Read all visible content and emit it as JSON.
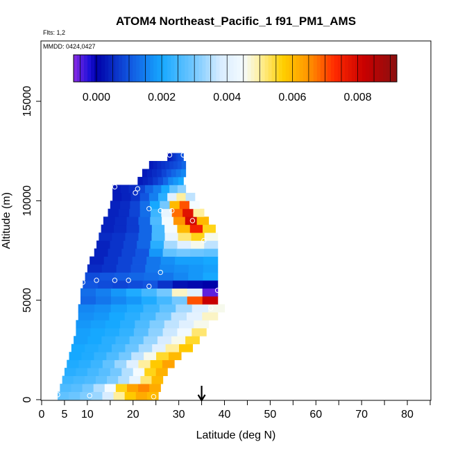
{
  "header": {
    "title": "ATOM4 Northeast_Pacific_1 f91_PM1_AMS",
    "flights": "Flts: 1,2",
    "dates": "MMDD: 0424,0427"
  },
  "chart_data": {
    "type": "heatmap",
    "title": "ATOM4 Northeast_Pacific_1 f91_PM1_AMS",
    "xlabel": "Latitude (deg N)",
    "ylabel": "Altitude (m)",
    "xlim": [
      0,
      85
    ],
    "ylim": [
      0,
      18000
    ],
    "xticks": [
      0,
      5,
      10,
      20,
      30,
      40,
      50,
      60,
      70,
      80
    ],
    "yticks": [
      0,
      5000,
      10000,
      15000
    ],
    "colorbar": {
      "range": [
        -0.0007,
        0.0092
      ],
      "ticks": [
        0.0,
        0.002,
        0.004,
        0.006,
        0.008
      ],
      "tick_labels": [
        "0.000",
        "0.002",
        "0.004",
        "0.006",
        "0.008"
      ],
      "stops": [
        {
          "v": -0.0007,
          "c": "#8a2be2"
        },
        {
          "v": -0.0002,
          "c": "#1a0fd8"
        },
        {
          "v": 0.0,
          "c": "#0000a8"
        },
        {
          "v": 0.001,
          "c": "#1155e0"
        },
        {
          "v": 0.002,
          "c": "#16a8ff"
        },
        {
          "v": 0.003,
          "c": "#74c8ff"
        },
        {
          "v": 0.0038,
          "c": "#d8ecff"
        },
        {
          "v": 0.0045,
          "c": "#f4fbff"
        },
        {
          "v": 0.005,
          "c": "#ffef9e"
        },
        {
          "v": 0.0057,
          "c": "#ffd000"
        },
        {
          "v": 0.0065,
          "c": "#ff9400"
        },
        {
          "v": 0.0073,
          "c": "#ff2a00"
        },
        {
          "v": 0.0082,
          "c": "#c80000"
        },
        {
          "v": 0.0092,
          "c": "#8a1010"
        }
      ]
    },
    "rows": [
      {
        "alt": 200,
        "lat_start": 3.5,
        "lat_end": 25.5,
        "values": [
          0.0028,
          0.0029,
          0.0031,
          0.0033,
          0.0038,
          0.005,
          0.0058,
          0.0062,
          0.006
        ]
      },
      {
        "alt": 600,
        "lat_start": 4.0,
        "lat_end": 26.0,
        "values": [
          0.0026,
          0.0027,
          0.003,
          0.0035,
          0.0045,
          0.0056,
          0.0063,
          0.0066,
          0.0062
        ]
      },
      {
        "alt": 1000,
        "lat_start": 4.5,
        "lat_end": 26.5,
        "values": [
          0.0024,
          0.0025,
          0.0026,
          0.0028,
          0.0031,
          0.0035,
          0.0042,
          0.0052,
          0.006
        ]
      },
      {
        "alt": 1400,
        "lat_start": 5.0,
        "lat_end": 27.5,
        "values": [
          0.0022,
          0.0023,
          0.0025,
          0.0027,
          0.003,
          0.0035,
          0.0045,
          0.0056,
          0.0061
        ]
      },
      {
        "alt": 1800,
        "lat_start": 5.5,
        "lat_end": 29.0,
        "values": [
          0.0021,
          0.0022,
          0.0024,
          0.0028,
          0.0033,
          0.004,
          0.005,
          0.0058,
          0.0063
        ]
      },
      {
        "alt": 2200,
        "lat_start": 6.0,
        "lat_end": 30.5,
        "values": [
          0.002,
          0.0021,
          0.0023,
          0.0026,
          0.003,
          0.0036,
          0.0046,
          0.0055,
          0.006
        ]
      },
      {
        "alt": 2600,
        "lat_start": 6.5,
        "lat_end": 33.0,
        "values": [
          0.002,
          0.0021,
          0.0022,
          0.0025,
          0.0029,
          0.0034,
          0.004,
          0.005,
          0.0058
        ]
      },
      {
        "alt": 3000,
        "lat_start": 7.0,
        "lat_end": 34.5,
        "values": [
          0.0019,
          0.002,
          0.0022,
          0.0024,
          0.0028,
          0.0033,
          0.0038,
          0.0046,
          0.0055
        ]
      },
      {
        "alt": 3400,
        "lat_start": 7.5,
        "lat_end": 36.0,
        "values": [
          0.0019,
          0.002,
          0.0021,
          0.0023,
          0.0027,
          0.0032,
          0.0037,
          0.0044,
          0.0052
        ]
      },
      {
        "alt": 3800,
        "lat_start": 7.5,
        "lat_end": 36.5,
        "values": [
          0.0018,
          0.0019,
          0.002,
          0.0022,
          0.0026,
          0.0031,
          0.0036,
          0.004,
          0.0046
        ]
      },
      {
        "alt": 4200,
        "lat_start": 8.0,
        "lat_end": 38.5,
        "values": [
          0.0017,
          0.0018,
          0.002,
          0.0022,
          0.0025,
          0.003,
          0.0036,
          0.0041,
          0.0048
        ]
      },
      {
        "alt": 4600,
        "lat_start": 8.0,
        "lat_end": 40.0,
        "values": [
          0.0016,
          0.0017,
          0.0019,
          0.0021,
          0.0024,
          0.0028,
          0.0034,
          0.004,
          0.0046
        ]
      },
      {
        "alt": 5000,
        "lat_start": 8.5,
        "lat_end": 38.5,
        "values": [
          0.0012,
          0.0014,
          0.0016,
          0.0018,
          0.0021,
          0.0025,
          0.003,
          0.007,
          0.0082
        ]
      },
      {
        "alt": 5400,
        "lat_start": 8.5,
        "lat_end": 38.5,
        "values": [
          0.0013,
          0.0015,
          0.0018,
          0.0021,
          0.0025,
          0.003,
          0.0048,
          0.004,
          -0.0005
        ]
      },
      {
        "alt": 5800,
        "lat_start": 9.0,
        "lat_end": 38.5,
        "values": [
          0.001,
          0.0009,
          0.0008,
          0.0009,
          0.001,
          0.0006,
          0.0002,
          0.0001,
          0.0
        ]
      },
      {
        "alt": 6200,
        "lat_start": 9.5,
        "lat_end": 38.5,
        "values": [
          0.0009,
          0.001,
          0.0011,
          0.0012,
          0.0013,
          0.0014,
          0.0016,
          0.0018,
          0.002
        ]
      },
      {
        "alt": 6600,
        "lat_start": 10.0,
        "lat_end": 38.5,
        "values": [
          0.0005,
          0.0006,
          0.0008,
          0.001,
          0.0014,
          0.0016,
          0.0017,
          0.0018,
          0.0019
        ]
      },
      {
        "alt": 7000,
        "lat_start": 10.5,
        "lat_end": 38.5,
        "values": [
          0.0004,
          0.0006,
          0.0008,
          0.001,
          0.0014,
          0.0017,
          0.0019,
          0.0019,
          0.002
        ]
      },
      {
        "alt": 7400,
        "lat_start": 11.5,
        "lat_end": 38.5,
        "values": [
          0.0004,
          0.0006,
          0.0008,
          0.001,
          0.0018,
          0.0028,
          0.003,
          0.0029,
          0.0028
        ]
      },
      {
        "alt": 7800,
        "lat_start": 12.0,
        "lat_end": 38.5,
        "values": [
          0.0004,
          0.0006,
          0.0008,
          0.0012,
          0.0022,
          0.0034,
          0.004,
          0.0046,
          0.0036
        ]
      },
      {
        "alt": 8200,
        "lat_start": 12.5,
        "lat_end": 38.5,
        "values": [
          0.0005,
          0.0006,
          0.0008,
          0.0012,
          0.0025,
          0.0042,
          0.0052,
          0.0056,
          0.0046
        ]
      },
      {
        "alt": 8600,
        "lat_start": 13.0,
        "lat_end": 38.0,
        "values": [
          0.0004,
          0.0005,
          0.0007,
          0.0012,
          0.0025,
          0.0045,
          0.006,
          0.0075,
          0.0056
        ]
      },
      {
        "alt": 9000,
        "lat_start": 13.5,
        "lat_end": 36.5,
        "values": [
          0.0004,
          0.0005,
          0.0007,
          0.0012,
          0.0026,
          0.0045,
          0.0065,
          0.008,
          0.006
        ]
      },
      {
        "alt": 9400,
        "lat_start": 14.5,
        "lat_end": 35.5,
        "values": [
          0.0004,
          0.0005,
          0.0008,
          0.0013,
          0.0024,
          0.0042,
          0.0068,
          0.0078,
          0.005
        ]
      },
      {
        "alt": 9800,
        "lat_start": 15.0,
        "lat_end": 34.5,
        "values": [
          0.0004,
          0.0005,
          0.0008,
          0.0013,
          0.002,
          0.003,
          0.006,
          0.007,
          0.0045
        ]
      },
      {
        "alt": 10200,
        "lat_start": 15.5,
        "lat_end": 33.5,
        "values": [
          0.0003,
          0.0004,
          0.0006,
          0.001,
          0.0015,
          0.0022,
          0.004,
          0.005,
          0.0036
        ]
      },
      {
        "alt": 10600,
        "lat_start": 15.5,
        "lat_end": 31.5,
        "values": [
          0.0003,
          0.0004,
          0.0005,
          0.0008,
          0.0012,
          0.0015,
          0.002,
          0.0028,
          0.0032
        ]
      },
      {
        "alt": 11000,
        "lat_start": 21.0,
        "lat_end": 31.0,
        "values": [
          0.0003,
          0.0004,
          0.0005,
          0.0007,
          0.0009,
          0.0012,
          0.0016,
          0.0018,
          0.002
        ]
      },
      {
        "alt": 11400,
        "lat_start": 22.0,
        "lat_end": 31.5,
        "values": [
          0.0003,
          0.0004,
          0.0005,
          0.0006,
          0.0008,
          0.001,
          0.0012,
          0.0014,
          0.0016
        ]
      },
      {
        "alt": 11800,
        "lat_start": 23.5,
        "lat_end": 31.5,
        "values": [
          0.0003,
          0.0004,
          0.0005,
          0.0006,
          0.0007,
          0.0008,
          0.0009,
          0.001,
          0.0012
        ]
      },
      {
        "alt": 12200,
        "lat_start": 27.5,
        "lat_end": 31.0,
        "values": [
          0.0003,
          0.0004,
          0.0005,
          0.0006,
          0.0007,
          0.0008,
          0.0009,
          0.0009,
          0.001
        ]
      }
    ],
    "points": [
      {
        "lat": 3.5,
        "alt": 250
      },
      {
        "lat": 10.5,
        "alt": 200
      },
      {
        "lat": 24.5,
        "alt": 150
      },
      {
        "lat": 37.0,
        "alt": 4600
      },
      {
        "lat": 38.5,
        "alt": 5500
      },
      {
        "lat": 23.5,
        "alt": 5700
      },
      {
        "lat": 9.0,
        "alt": 5900
      },
      {
        "lat": 12.0,
        "alt": 6000
      },
      {
        "lat": 16.0,
        "alt": 6000
      },
      {
        "lat": 19.0,
        "alt": 6000
      },
      {
        "lat": 26.0,
        "alt": 6400
      },
      {
        "lat": 35.5,
        "alt": 8000
      },
      {
        "lat": 33.0,
        "alt": 9000
      },
      {
        "lat": 23.5,
        "alt": 9600
      },
      {
        "lat": 26.0,
        "alt": 9500
      },
      {
        "lat": 28.5,
        "alt": 9500
      },
      {
        "lat": 20.5,
        "alt": 10400
      },
      {
        "lat": 21.0,
        "alt": 10600
      },
      {
        "lat": 16.0,
        "alt": 10700
      },
      {
        "lat": 28.0,
        "alt": 12300
      },
      {
        "lat": 31.0,
        "alt": 12300
      }
    ],
    "marker": {
      "lat": 35,
      "direction": "down"
    }
  }
}
